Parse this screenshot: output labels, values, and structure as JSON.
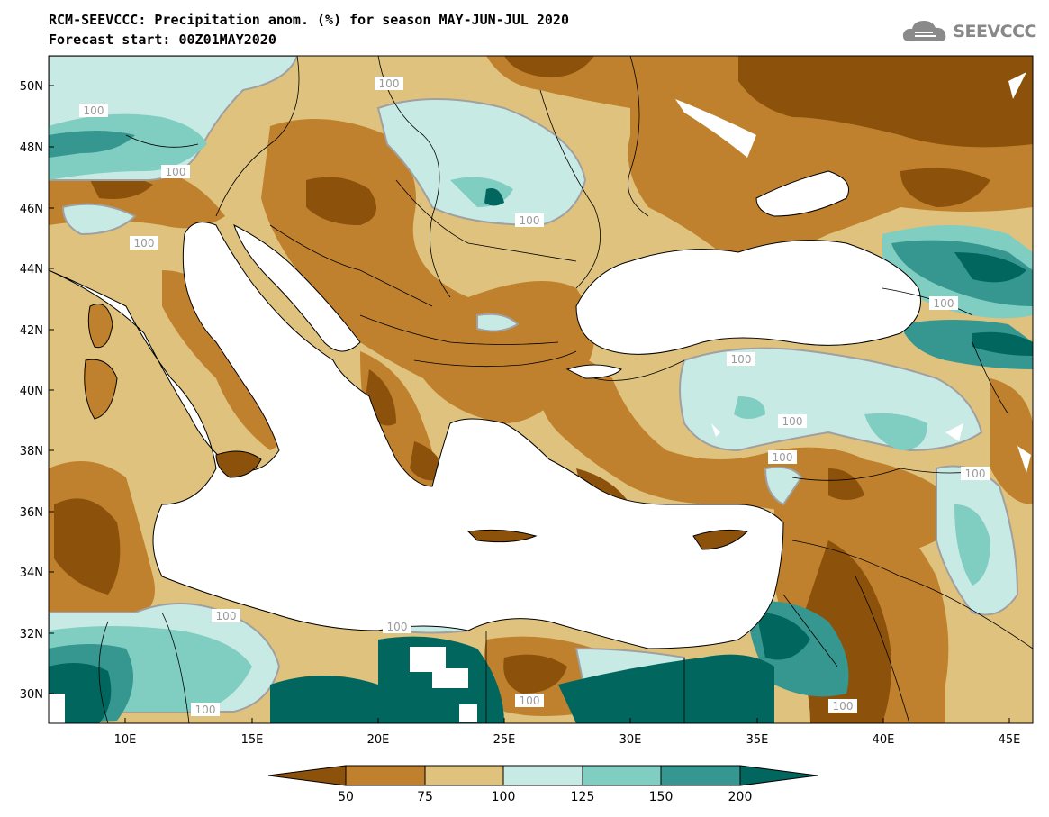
{
  "title": {
    "line1": "RCM-SEEVCCC: Precipitation anom. (%) for season MAY-JUN-JUL 2020",
    "line2": "Forecast start: 00Z01MAY2020"
  },
  "logo": {
    "text": "SEEVCCC",
    "icon": "cloud-icon"
  },
  "map": {
    "lat_labels": [
      "50N",
      "48N",
      "46N",
      "44N",
      "42N",
      "40N",
      "38N",
      "36N",
      "34N",
      "32N",
      "30N"
    ],
    "lon_labels": [
      "10E",
      "15E",
      "20E",
      "25E",
      "30E",
      "35E",
      "40E",
      "45E"
    ],
    "contour_label": "100",
    "colors": {
      "lt50": "#8c510a",
      "50_75": "#bf812d",
      "75_100": "#dfc27d",
      "100_125": "#c7eae5",
      "125_150": "#80cdc1",
      "150_200": "#35978f",
      "gt200": "#01665e",
      "sea": "#ffffff",
      "contour": "#a0a0a0"
    }
  },
  "colorbar": {
    "ticks": [
      "50",
      "75",
      "100",
      "125",
      "150",
      "200"
    ]
  }
}
